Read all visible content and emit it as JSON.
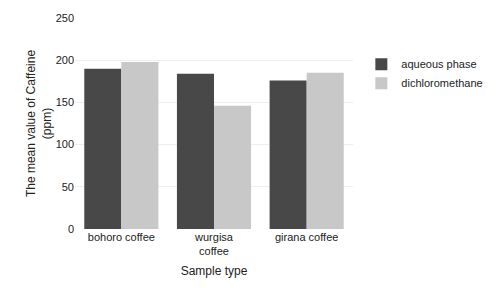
{
  "chart_data": {
    "type": "bar",
    "categories": [
      "bohoro coffee",
      "wurgisa\ncoffee",
      "girana coffee"
    ],
    "series": [
      {
        "name": "aqueous phase",
        "color": "#484848",
        "values": [
          190,
          184,
          176
        ]
      },
      {
        "name": "dichloromethane",
        "color": "#c8c8c8",
        "values": [
          198,
          146,
          185
        ]
      }
    ],
    "xlabel": "Sample type",
    "ylabel": "The mean value of Caffeine\n(ppm)",
    "ylim": [
      0,
      250
    ],
    "yticks": [
      0,
      50,
      100,
      150,
      200,
      250
    ],
    "grid": true,
    "legend": "right"
  }
}
